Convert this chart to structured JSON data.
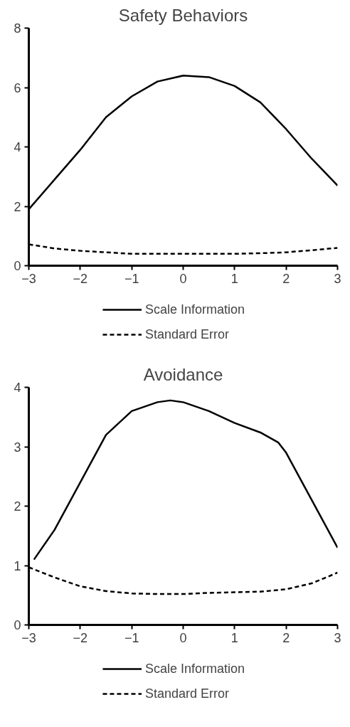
{
  "chart_data": [
    {
      "type": "line",
      "title": "Safety Behaviors",
      "x": [
        -3,
        -2.5,
        -2,
        -1.5,
        -1,
        -0.5,
        0,
        0.5,
        1,
        1.5,
        2,
        2.5,
        3
      ],
      "series": [
        {
          "name": "Scale Information",
          "color": "#000000",
          "line_style": "solid",
          "values": [
            1.9,
            2.9,
            3.9,
            5.0,
            5.7,
            6.2,
            6.4,
            6.35,
            6.05,
            5.5,
            4.6,
            3.6,
            2.7
          ]
        },
        {
          "name": "Standard Error",
          "color": "#000000",
          "line_style": "dashed",
          "values": [
            0.72,
            0.58,
            0.5,
            0.45,
            0.4,
            0.4,
            0.4,
            0.4,
            0.4,
            0.42,
            0.45,
            0.52,
            0.6
          ]
        }
      ],
      "xlim": [
        -3,
        3
      ],
      "xticks": [
        -3,
        -2,
        -1,
        0,
        1,
        2,
        3
      ],
      "ylim": [
        0,
        8
      ],
      "yticks": [
        0,
        2,
        4,
        6,
        8
      ],
      "grid": false,
      "legend": "bottom",
      "marker": "none"
    },
    {
      "type": "line",
      "title": "Avoidance",
      "x": [
        -2.9,
        -2.5,
        -2,
        -1.5,
        -1,
        -0.5,
        -0.25,
        0,
        0.5,
        1,
        1.5,
        1.85,
        2,
        2.5,
        3
      ],
      "series": [
        {
          "name": "Scale Information",
          "color": "#000000",
          "line_style": "solid",
          "values": [
            1.1,
            1.6,
            2.4,
            3.2,
            3.6,
            3.75,
            3.78,
            3.75,
            3.6,
            3.4,
            3.24,
            3.07,
            2.9,
            2.1,
            1.3
          ]
        },
        {
          "name": "Standard Error",
          "color": "#000000",
          "line_style": "dashed",
          "x": [
            -3,
            -2.5,
            -2,
            -1.5,
            -1,
            -0.5,
            0,
            0.5,
            1,
            1.5,
            2,
            2.5,
            3
          ],
          "values": [
            0.97,
            0.8,
            0.65,
            0.57,
            0.53,
            0.52,
            0.52,
            0.54,
            0.55,
            0.56,
            0.6,
            0.7,
            0.88
          ]
        }
      ],
      "xlim": [
        -3,
        3
      ],
      "xticks": [
        -3,
        -2,
        -1,
        0,
        1,
        2,
        3
      ],
      "ylim": [
        0,
        4
      ],
      "yticks": [
        0,
        1,
        2,
        3,
        4
      ],
      "grid": false,
      "legend": "bottom",
      "marker": "none"
    }
  ]
}
